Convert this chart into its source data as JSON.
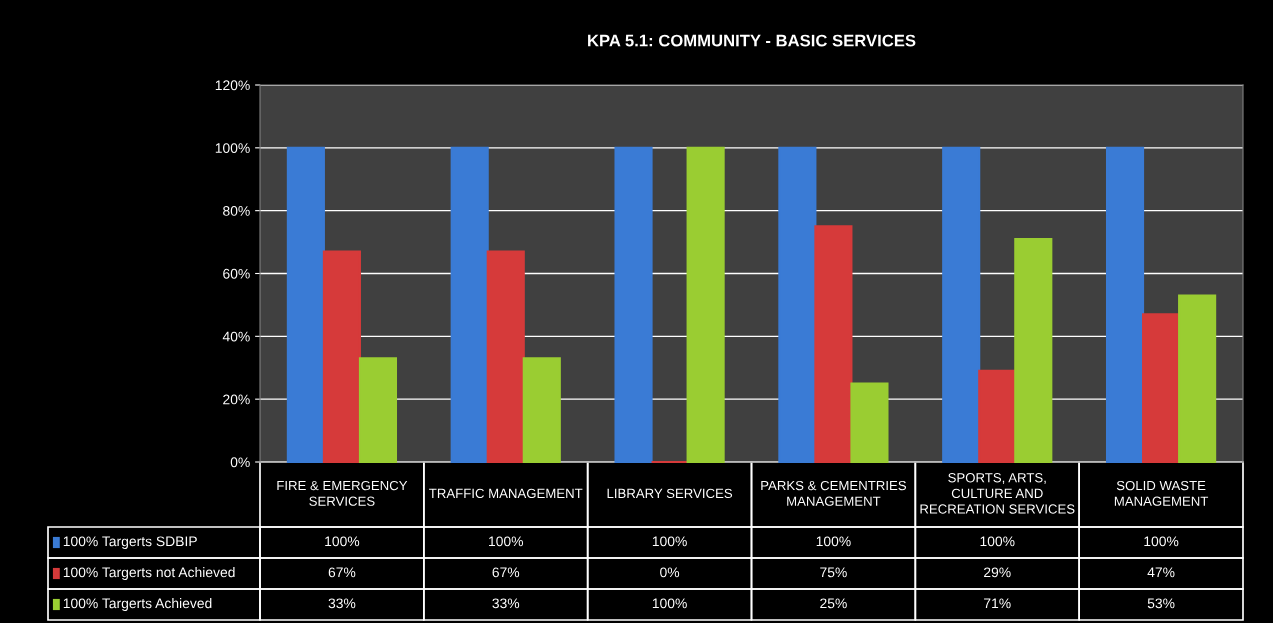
{
  "chart_data": {
    "type": "bar",
    "title": "KPA 5.1: COMMUNITY - BASIC SERVICES",
    "categories": [
      "FIRE & EMERGENCY SERVICES",
      "TRAFFIC MANAGEMENT",
      "LIBRARY SERVICES",
      "PARKS & CEMENTRIES MANAGEMENT",
      "SPORTS, ARTS, CULTURE AND RECREATION SERVICES",
      "SOLID WASTE MANAGEMENT"
    ],
    "series": [
      {
        "name": "100% Targerts SDBIP",
        "color": "#3a7bd5",
        "values": [
          100,
          100,
          100,
          100,
          100,
          100
        ],
        "value_labels": [
          "100%",
          "100%",
          "100%",
          "100%",
          "100%",
          "100%"
        ]
      },
      {
        "name": "100% Targerts not Achieved",
        "color": "#d63a3a",
        "values": [
          67,
          67,
          0,
          75,
          29,
          47
        ],
        "value_labels": [
          "67%",
          "67%",
          "0%",
          "75%",
          "29%",
          "47%"
        ]
      },
      {
        "name": "100% Targerts Achieved",
        "color": "#9acd32",
        "values": [
          33,
          33,
          100,
          25,
          71,
          53
        ],
        "value_labels": [
          "33%",
          "33%",
          "100%",
          "25%",
          "71%",
          "53%"
        ]
      }
    ],
    "ylim": [
      0,
      120
    ],
    "yticks": [
      {
        "value": 0,
        "label": "0%"
      },
      {
        "value": 20,
        "label": "20%"
      },
      {
        "value": 40,
        "label": "40%"
      },
      {
        "value": 60,
        "label": "60%"
      },
      {
        "value": 80,
        "label": "80%"
      },
      {
        "value": 100,
        "label": "100%"
      },
      {
        "value": 120,
        "label": "120%"
      }
    ],
    "grid": "y",
    "legend": "bottom"
  }
}
